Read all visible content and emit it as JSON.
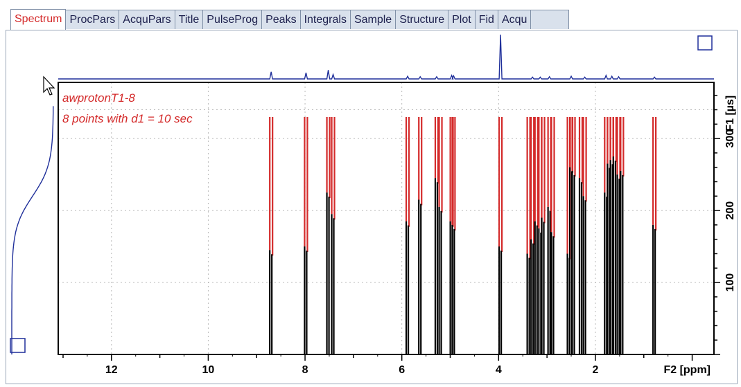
{
  "tabs": [
    {
      "label": "Spectrum",
      "active": true
    },
    {
      "label": "ProcPars",
      "active": false
    },
    {
      "label": "AcquPars",
      "active": false
    },
    {
      "label": "Title",
      "active": false
    },
    {
      "label": "PulseProg",
      "active": false
    },
    {
      "label": "Peaks",
      "active": false
    },
    {
      "label": "Integrals",
      "active": false
    },
    {
      "label": "Sample",
      "active": false
    },
    {
      "label": "Structure",
      "active": false
    },
    {
      "label": "Plot",
      "active": false
    },
    {
      "label": "Fid",
      "active": false
    },
    {
      "label": "Acqu",
      "active": false
    }
  ],
  "colors": {
    "accent": "#d42a2a",
    "projection": "#1f2f9a",
    "axis": "#000000",
    "tab_bg": "#d9e1ec"
  },
  "annotation": {
    "line1": "awprotonT1-8",
    "line2": "8 points with d1 = 10 sec"
  },
  "icons": {
    "cursor": "mouse-pointer-icon",
    "corner_box_top": "square-outline-icon",
    "corner_box_bottom": "square-outline-icon"
  },
  "chart_data": {
    "type": "stacked-1d-relaxation",
    "xlabel": "F2 [ppm]",
    "ylabel": "F1 [µs]",
    "xlim": [
      13.1,
      -0.45
    ],
    "ylim": [
      0,
      378
    ],
    "xticks": [
      12,
      10,
      8,
      6,
      4,
      2
    ],
    "yticks": [
      100,
      200,
      300
    ],
    "grid": true,
    "peaks_ppm": [
      8.7,
      7.98,
      7.52,
      7.42,
      5.88,
      5.62,
      5.28,
      5.2,
      4.97,
      4.93,
      3.96,
      3.38,
      3.3,
      3.22,
      3.14,
      3.08,
      2.95,
      2.88,
      2.55,
      2.5,
      2.45,
      2.3,
      2.22,
      1.78,
      1.72,
      1.66,
      1.6,
      1.52,
      1.45,
      0.78
    ],
    "recovery_f1": [
      145,
      150,
      225,
      195,
      185,
      215,
      245,
      205,
      185,
      180,
      150,
      140,
      160,
      185,
      175,
      190,
      205,
      170,
      140,
      260,
      255,
      245,
      220,
      225,
      265,
      270,
      275,
      250,
      255,
      180
    ],
    "projection_peaks": [
      {
        "ppm": 8.7,
        "h": 0.16
      },
      {
        "ppm": 7.98,
        "h": 0.14
      },
      {
        "ppm": 7.52,
        "h": 0.2
      },
      {
        "ppm": 7.42,
        "h": 0.1
      },
      {
        "ppm": 5.88,
        "h": 0.06
      },
      {
        "ppm": 5.62,
        "h": 0.05
      },
      {
        "ppm": 5.28,
        "h": 0.05
      },
      {
        "ppm": 4.97,
        "h": 0.08
      },
      {
        "ppm": 4.93,
        "h": 0.07
      },
      {
        "ppm": 3.96,
        "h": 1.0
      },
      {
        "ppm": 3.3,
        "h": 0.04
      },
      {
        "ppm": 3.14,
        "h": 0.04
      },
      {
        "ppm": 2.95,
        "h": 0.05
      },
      {
        "ppm": 2.5,
        "h": 0.06
      },
      {
        "ppm": 2.22,
        "h": 0.04
      },
      {
        "ppm": 1.78,
        "h": 0.08
      },
      {
        "ppm": 1.66,
        "h": 0.06
      },
      {
        "ppm": 1.52,
        "h": 0.05
      },
      {
        "ppm": 0.78,
        "h": 0.04
      }
    ]
  }
}
